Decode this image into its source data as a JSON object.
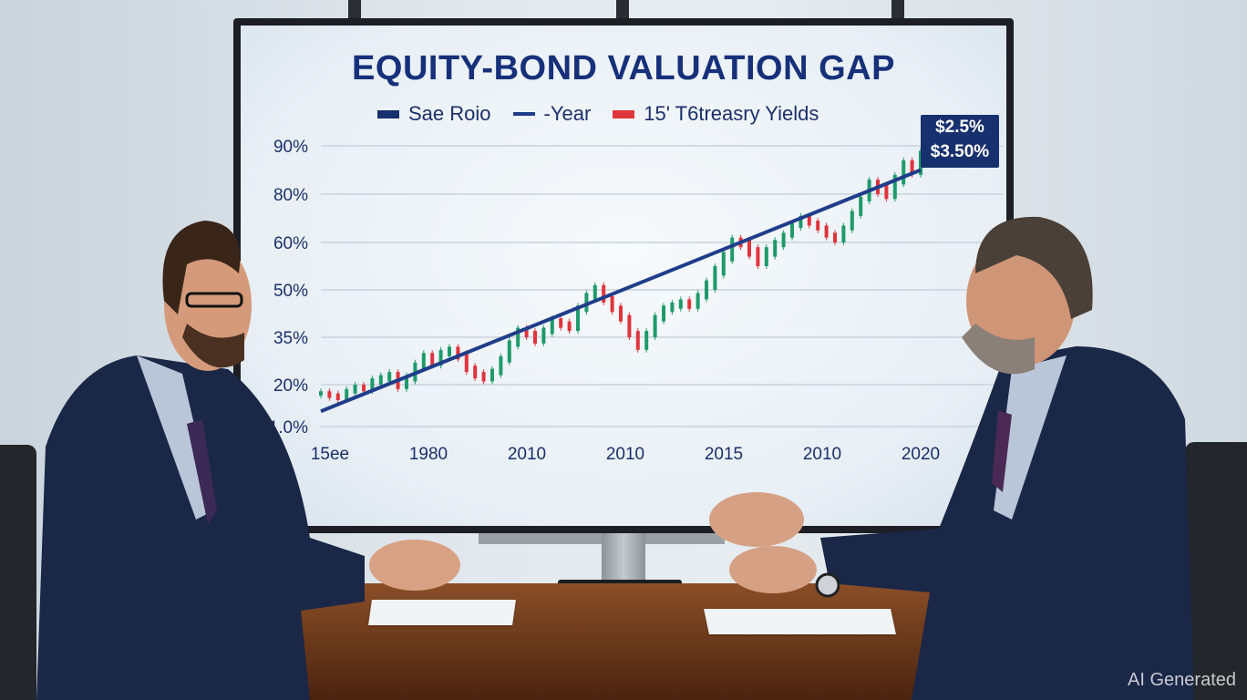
{
  "chart_data": {
    "type": "line",
    "title": "EQUITY-BOND VALUATION GAP",
    "legend": [
      {
        "label": "Sae Roio",
        "color": "#17306e"
      },
      {
        "label": "-Year",
        "color": "#1f3d8a"
      },
      {
        "label": "15' T6treasry Yields",
        "color": "#e0343c"
      }
    ],
    "y_ticks": [
      "90%",
      "80%",
      "60%",
      "50%",
      "35%",
      "20%",
      "1.0%"
    ],
    "y_tick_values": [
      90,
      80,
      60,
      50,
      35,
      20,
      1
    ],
    "x_ticks": [
      "15ee",
      "1980",
      "2010",
      "2010",
      "2015",
      "2010",
      "2020"
    ],
    "grid": true,
    "candles": [
      16,
      15,
      14,
      17,
      19,
      18,
      21,
      22,
      23,
      19,
      22,
      26,
      29,
      27,
      30,
      31,
      29,
      25,
      23,
      22,
      24,
      28,
      33,
      37,
      36,
      34,
      37,
      40,
      39,
      38,
      44,
      48,
      50,
      47,
      44,
      41,
      36,
      32,
      36,
      41,
      44,
      45,
      46,
      45,
      48,
      51,
      54,
      57,
      61,
      60,
      58,
      56,
      58,
      60,
      63,
      67,
      70,
      68,
      66,
      63,
      61,
      66,
      72,
      78,
      82,
      81,
      79,
      83,
      86,
      85,
      88
    ],
    "trend_line": {
      "start": 10,
      "end": 85,
      "color": "#1f3d8a"
    },
    "up_color": "#1f9a6a",
    "down_color": "#e0343c",
    "callout": [
      "$2.5%",
      "$3.50%"
    ]
  },
  "watermark": "AI Generated"
}
